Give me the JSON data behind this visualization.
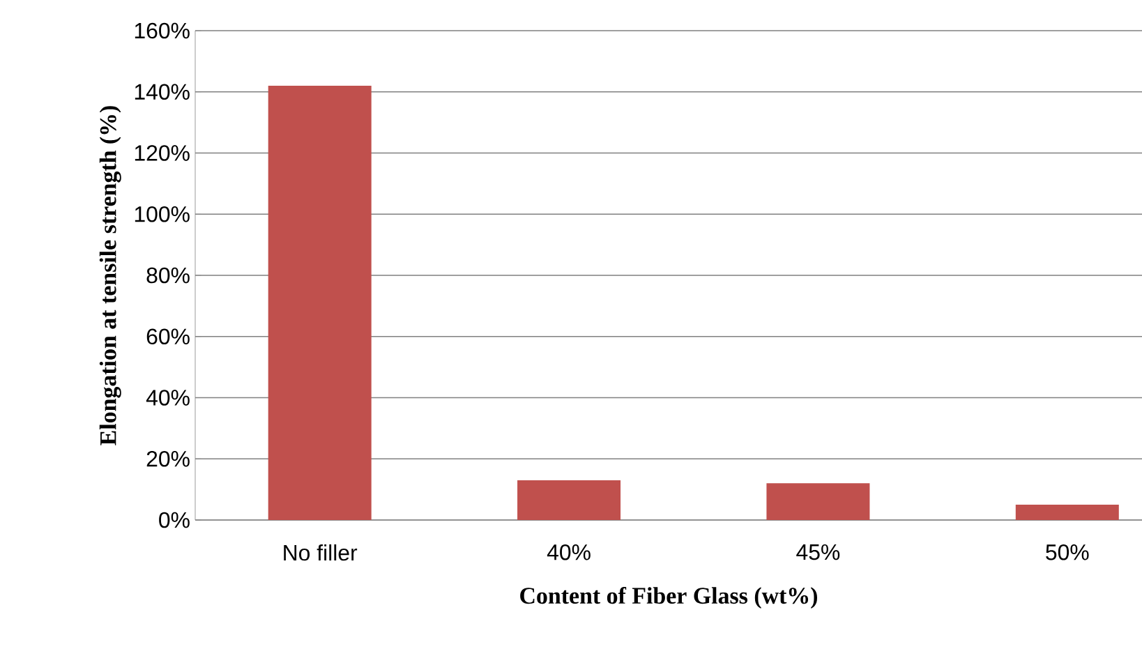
{
  "chart_data": {
    "type": "bar",
    "xlabel": "Content of Fiber Glass (wt%)",
    "ylabel": "Elongation at tensile strength (%)",
    "categories": [
      "No filler",
      "40%",
      "45%",
      "50%"
    ],
    "values": [
      142,
      13,
      12,
      5
    ],
    "color": "#c0504d",
    "ylim": [
      0,
      160
    ],
    "yticks": [
      {
        "value": 0,
        "label": "0%"
      },
      {
        "value": 20,
        "label": "20%"
      },
      {
        "value": 40,
        "label": "40%"
      },
      {
        "value": 60,
        "label": "60%"
      },
      {
        "value": 80,
        "label": "80%"
      },
      {
        "value": 100,
        "label": "100%"
      },
      {
        "value": 120,
        "label": "120%"
      },
      {
        "value": 140,
        "label": "140%"
      },
      {
        "value": 160,
        "label": "160%"
      }
    ],
    "grid": "y"
  }
}
